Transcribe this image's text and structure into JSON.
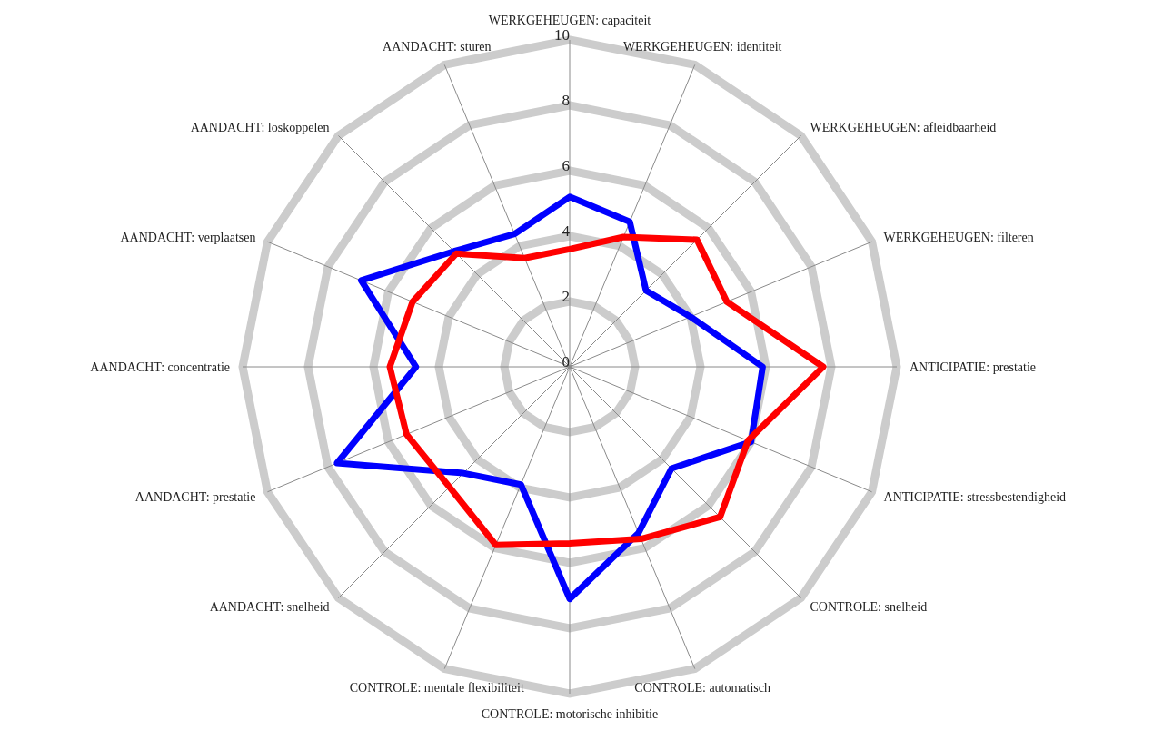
{
  "chart_data": {
    "type": "radar",
    "categories": [
      "WERKGEHEUGEN: capaciteit",
      "WERKGEHEUGEN: identiteit",
      "WERKGEHEUGEN: afleidbaarheid",
      "WERKGEHEUGEN: filteren",
      "ANTICIPATIE: prestatie",
      "ANTICIPATIE: stressbestendigheid",
      "CONTROLE: snelheid",
      "CONTROLE: automatisch",
      "CONTROLE: motorische inhibitie",
      "CONTROLE: mentale flexibiliteit",
      "AANDACHT: snelheid",
      "AANDACHT: prestatie",
      "AANDACHT: concentratie",
      "AANDACHT: verplaatsen",
      "AANDACHT: loskoppelen",
      "AANDACHT: sturen"
    ],
    "series": [
      {
        "color": "#0000ff",
        "values": [
          5.2,
          4.8,
          3.3,
          4.0,
          5.9,
          6.0,
          4.4,
          5.5,
          7.1,
          3.9,
          4.6,
          7.7,
          4.7,
          6.9,
          5.0,
          4.4
        ]
      },
      {
        "color": "#ff0000",
        "values": [
          3.6,
          4.3,
          5.5,
          5.2,
          7.75,
          5.9,
          6.5,
          5.7,
          5.4,
          5.9,
          5.2,
          5.4,
          5.5,
          5.2,
          4.9,
          3.6
        ]
      }
    ],
    "ylim": [
      0,
      10
    ],
    "yticks": [
      0,
      2,
      4,
      6,
      8,
      10
    ],
    "grid": true,
    "marker": "none"
  }
}
